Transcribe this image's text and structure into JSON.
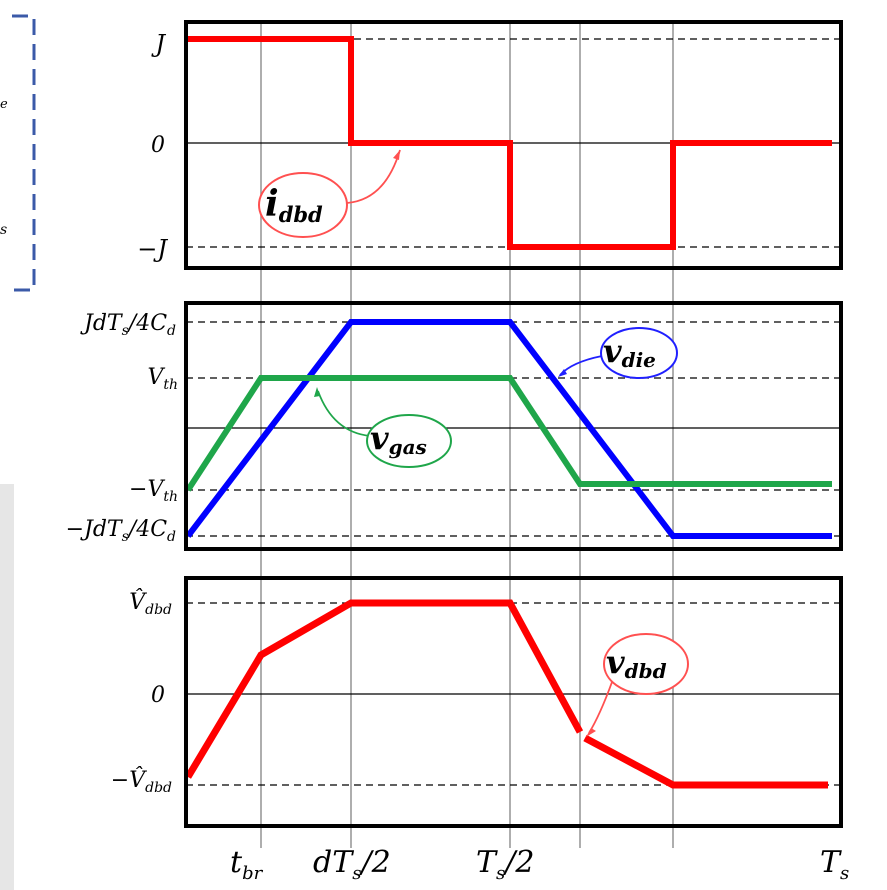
{
  "colors": {
    "idbd": "#ff0000",
    "vdie": "#0000ff",
    "vgas": "#1fa64a",
    "vdbd": "#ff0000",
    "callout_red": "#ff5050",
    "callout_blue": "#2020ff",
    "callout_green": "#1fa64a"
  },
  "side_fragments": {
    "f1": "e",
    "f2": "s"
  },
  "x_ticks": [
    {
      "base": "t",
      "sub": "br"
    },
    {
      "base": "dT",
      "sub": "s",
      "tail": "/2"
    },
    {
      "base": "T",
      "sub": "s",
      "tail": "/2"
    },
    {
      "base": "T",
      "sub": "s"
    }
  ],
  "panels": {
    "current": {
      "ticks": {
        "top": "J",
        "mid": "0",
        "bot": "−J"
      },
      "callout": {
        "base": "i",
        "sub": "dbd"
      }
    },
    "voltages": {
      "ticks": {
        "top": {
          "pre": "JdT",
          "sub1": "s",
          "mid": "/4C",
          "sub2": "d"
        },
        "vth": {
          "base": "V",
          "sub": "th"
        },
        "nvth": {
          "base": "−V",
          "sub": "th"
        },
        "bot": {
          "pre": "−JdT",
          "sub1": "s",
          "mid": "/4C",
          "sub2": "d"
        }
      },
      "callout_die": {
        "base": "v",
        "sub": "die"
      },
      "callout_gas": {
        "base": "v",
        "sub": "gas"
      }
    },
    "vdbd": {
      "ticks": {
        "top": {
          "base": "V̂",
          "sub": "dbd"
        },
        "mid": "0",
        "bot": {
          "base": "−V̂",
          "sub": "dbd"
        }
      },
      "callout": {
        "base": "v",
        "sub": "dbd"
      }
    }
  }
}
